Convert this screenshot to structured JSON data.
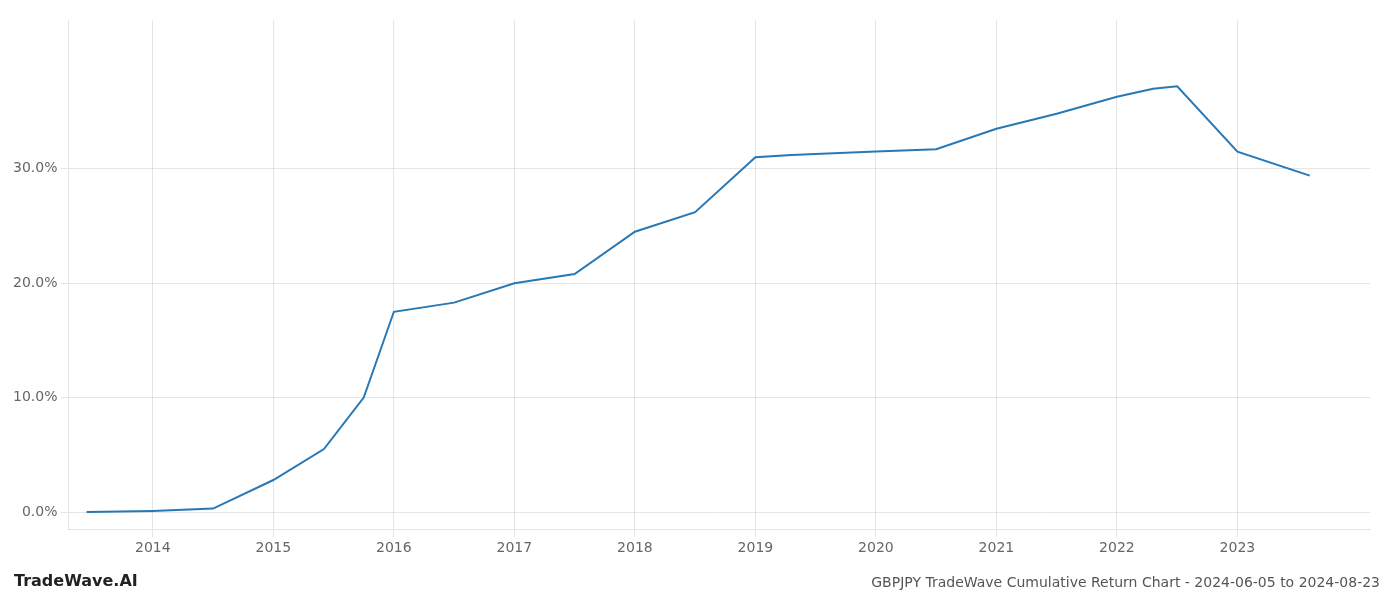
{
  "chart_data": {
    "type": "line",
    "title": "GBPJPY TradeWave Cumulative Return Chart - 2024-06-05 to 2024-08-23",
    "annotations": [
      "TradeWave.AI"
    ],
    "x": [
      2013.45,
      2014.0,
      2014.5,
      2015.0,
      2015.42,
      2015.75,
      2016.0,
      2016.5,
      2017.0,
      2017.5,
      2018.0,
      2018.5,
      2019.0,
      2019.3,
      2019.5,
      2020.0,
      2020.5,
      2021.0,
      2021.5,
      2022.0,
      2022.3,
      2022.5,
      2023.0,
      2023.6
    ],
    "values": [
      0.0,
      0.001,
      0.003,
      0.028,
      0.055,
      0.1,
      0.175,
      0.183,
      0.2,
      0.208,
      0.245,
      0.262,
      0.31,
      0.312,
      0.313,
      0.315,
      0.317,
      0.335,
      0.348,
      0.363,
      0.37,
      0.372,
      0.315,
      0.294
    ],
    "color": "#2878b5",
    "xlim": [
      2013.3,
      2024.1
    ],
    "xticks": [
      2014,
      2015,
      2016,
      2017,
      2018,
      2019,
      2020,
      2021,
      2022,
      2023
    ],
    "ylim": [
      -0.015,
      0.43
    ],
    "yticks": [
      {
        "value": 0.0,
        "label": "0.0%"
      },
      {
        "value": 0.1,
        "label": "10.0%"
      },
      {
        "value": 0.2,
        "label": "20.0%"
      },
      {
        "value": 0.3,
        "label": "30.0%"
      }
    ],
    "grid": true
  }
}
